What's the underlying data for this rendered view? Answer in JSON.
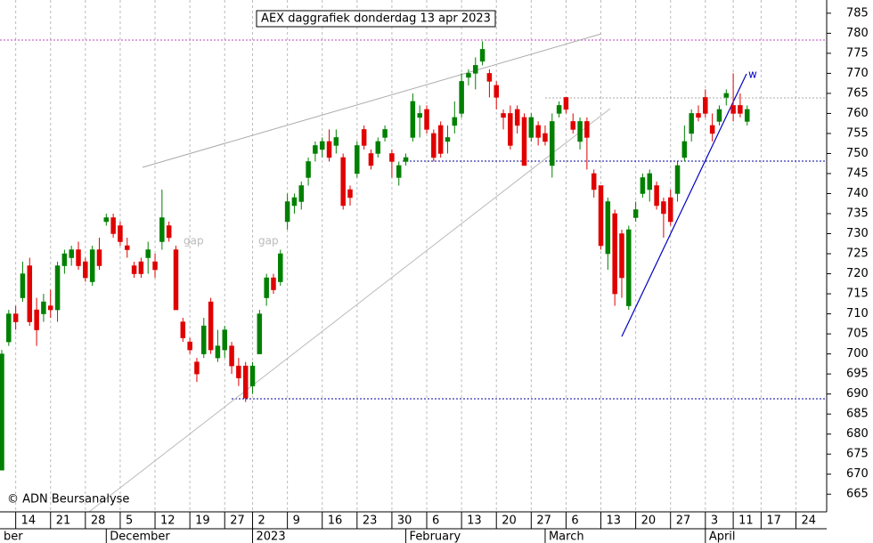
{
  "chart_data": {
    "type": "candlestick",
    "title": "AEX daggrafiek donderdag 13 apr 2023",
    "copyright": "© ADN Beursanalyse",
    "annotations": [
      "gap",
      "gap",
      "w"
    ],
    "month_labels": [
      "ber",
      "December",
      "2023",
      "February",
      "March",
      "April"
    ],
    "categories": [
      null,
      null,
      "14",
      null,
      null,
      null,
      null,
      "21",
      null,
      null,
      null,
      null,
      "28",
      null,
      null,
      null,
      null,
      "5",
      null,
      null,
      null,
      null,
      "12",
      null,
      null,
      null,
      null,
      "19",
      null,
      null,
      null,
      null,
      "27",
      null,
      null,
      null,
      "2",
      null,
      null,
      null,
      null,
      "9",
      null,
      null,
      null,
      null,
      "16",
      null,
      null,
      null,
      null,
      "23",
      null,
      null,
      null,
      null,
      "30",
      null,
      null,
      null,
      null,
      "6",
      null,
      null,
      null,
      null,
      "13",
      null,
      null,
      null,
      null,
      "20",
      null,
      null,
      null,
      null,
      "27",
      null,
      null,
      null,
      null,
      "6",
      null,
      null,
      null,
      null,
      "13",
      null,
      null,
      null,
      null,
      "20",
      null,
      null,
      null,
      null,
      "27",
      null,
      null,
      null,
      null,
      "3",
      null,
      null,
      null,
      "11",
      null,
      null,
      null,
      "17",
      null,
      null,
      null,
      null,
      "24",
      null,
      null,
      null,
      null
    ],
    "open": [
      671,
      703,
      710,
      714,
      722,
      711,
      710,
      712,
      711,
      722,
      724,
      726,
      723,
      718,
      726,
      733,
      734,
      732,
      727,
      722,
      723,
      724,
      723,
      728,
      732,
      726,
      708,
      703,
      698,
      700,
      713,
      699,
      701,
      702,
      697,
      697,
      692,
      700,
      714,
      719,
      718,
      733,
      737,
      738,
      744,
      750,
      751,
      753,
      752,
      749,
      741,
      745,
      756,
      750,
      750,
      754,
      750,
      744,
      748,
      754,
      759,
      761,
      755,
      757,
      753,
      757,
      760,
      769,
      770,
      773,
      770,
      767,
      760,
      760,
      761,
      759,
      754,
      757,
      755,
      747,
      760,
      764,
      758,
      753,
      758,
      745,
      742,
      725,
      735,
      730,
      712,
      734,
      740,
      741,
      742,
      738,
      739,
      740,
      749,
      755,
      760,
      764,
      757,
      758,
      764,
      762,
      762,
      758,
      null,
      null,
      null,
      null,
      null,
      null,
      null,
      null,
      null,
      null,
      null
    ],
    "high": [
      701,
      711,
      712,
      723,
      724,
      714,
      715,
      716,
      723,
      726,
      727,
      728,
      724,
      727,
      729,
      735,
      735,
      733,
      729,
      723,
      724,
      728,
      725,
      741,
      733,
      727,
      709,
      704,
      699,
      709,
      714,
      706,
      707,
      703,
      699,
      698,
      698,
      711,
      720,
      720,
      726,
      740,
      740,
      743,
      749,
      753,
      754,
      756,
      756,
      750,
      742,
      753,
      757,
      751,
      754,
      757,
      751,
      748,
      750,
      765,
      762,
      762,
      756,
      758,
      757,
      763,
      770,
      771,
      774,
      778,
      771,
      768,
      761,
      762,
      762,
      760,
      760,
      758,
      757,
      760,
      763,
      764,
      760,
      759,
      759,
      746,
      742,
      739,
      736,
      731,
      732,
      738,
      745,
      746,
      743,
      739,
      741,
      748,
      757,
      761,
      762,
      766,
      760,
      762,
      766,
      770,
      765,
      762,
      null,
      null,
      null,
      null,
      null,
      null,
      null,
      null,
      null,
      null,
      null
    ],
    "low": [
      671,
      702,
      706,
      713,
      707,
      702,
      708,
      709,
      708,
      720,
      722,
      721,
      718,
      717,
      721,
      732,
      729,
      727,
      724,
      719,
      719,
      720,
      719,
      726,
      728,
      711,
      703,
      700,
      693,
      699,
      700,
      698,
      699,
      695,
      692,
      688,
      690,
      700,
      712,
      715,
      717,
      731,
      735,
      736,
      742,
      748,
      749,
      748,
      750,
      736,
      737,
      744,
      751,
      746,
      749,
      753,
      744,
      742,
      747,
      753,
      754,
      755,
      748,
      749,
      750,
      755,
      759,
      767,
      766,
      772,
      764,
      761,
      756,
      751,
      755,
      747,
      753,
      752,
      752,
      744,
      759,
      760,
      755,
      751,
      746,
      739,
      726,
      721,
      712,
      714,
      711,
      733,
      739,
      738,
      736,
      729,
      732,
      738,
      748,
      753,
      758,
      759,
      753,
      757,
      762,
      758,
      759,
      757,
      null,
      null,
      null,
      null,
      null,
      null,
      null,
      null,
      null,
      null,
      null
    ],
    "close": [
      700,
      710,
      708,
      720,
      708,
      706,
      713,
      711,
      722,
      725,
      726,
      722,
      719,
      726,
      722,
      734,
      730,
      728,
      726,
      720,
      720,
      726,
      721,
      734,
      729,
      711,
      704,
      701,
      695,
      707,
      701,
      702,
      706,
      697,
      694,
      689,
      697,
      710,
      719,
      716,
      725,
      738,
      739,
      742,
      748,
      752,
      753,
      749,
      754,
      737,
      739,
      752,
      752,
      747,
      753,
      756,
      748,
      747,
      749,
      763,
      760,
      756,
      749,
      750,
      754,
      759,
      768,
      770,
      772,
      776,
      768,
      764,
      759,
      752,
      757,
      747,
      759,
      754,
      753,
      758,
      762,
      761,
      756,
      758,
      754,
      741,
      727,
      738,
      715,
      719,
      731,
      736,
      744,
      745,
      737,
      735,
      733,
      747,
      753,
      760,
      759,
      760,
      755,
      761,
      765,
      760,
      760,
      761,
      null,
      null,
      null,
      null,
      null,
      null,
      null,
      null,
      null,
      null,
      null
    ],
    "up_color": "#008000",
    "down_color": "#e00000",
    "ylim": [
      660.6,
      788.3
    ],
    "yticks": [
      665,
      670,
      675,
      680,
      685,
      690,
      695,
      700,
      705,
      710,
      715,
      720,
      725,
      730,
      735,
      740,
      745,
      750,
      755,
      760,
      765,
      770,
      775,
      780,
      785
    ]
  }
}
